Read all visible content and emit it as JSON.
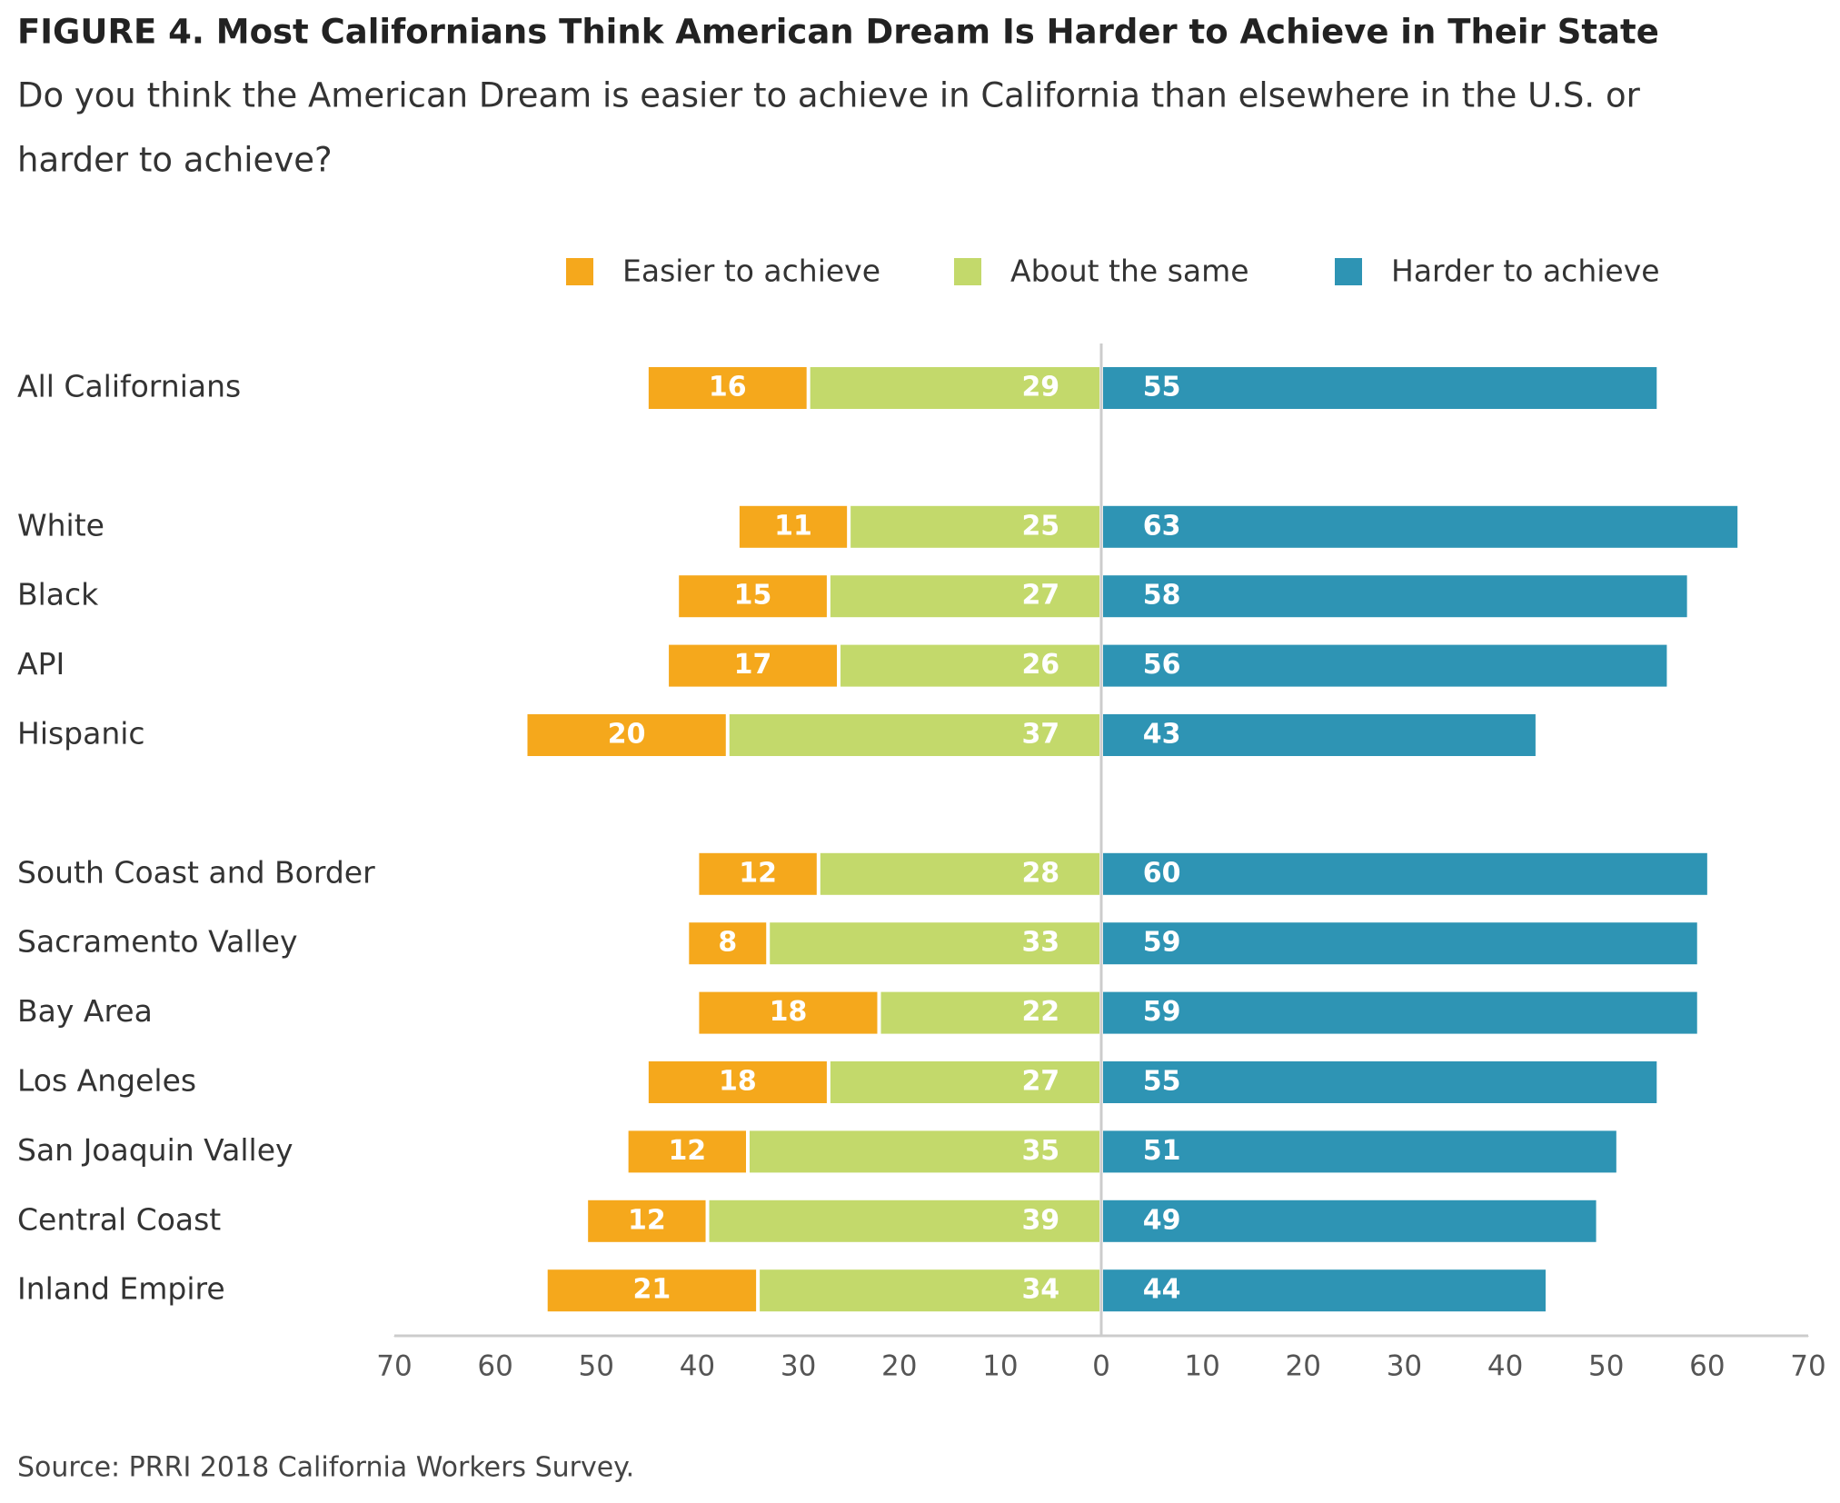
{
  "chart_data": {
    "type": "diverging-bar",
    "title": "FIGURE 4. Most Californians Think American Dream Is Harder to Achieve in Their State",
    "subtitle": [
      "Do you think the American Dream is easier to achieve in California than elsewhere in the U.S. or",
      "harder to achieve?"
    ],
    "source": "Source: PRRI 2018 California Workers Survey.",
    "categories": [
      "All Californians",
      null,
      "White",
      "Black",
      "API",
      "Hispanic",
      null,
      "South Coast and Border",
      "Sacramento Valley",
      "Bay Area",
      "Los Angeles",
      "San Joaquin Valley",
      "Central Coast",
      "Inland Empire"
    ],
    "series": [
      {
        "name": "Easier to achieve",
        "color": "#f5a81c",
        "side": "left",
        "values": [
          16,
          null,
          11,
          15,
          17,
          20,
          null,
          12,
          8,
          18,
          18,
          12,
          12,
          21
        ]
      },
      {
        "name": "About the same",
        "color": "#c3d96b",
        "side": "left",
        "values": [
          29,
          null,
          25,
          27,
          26,
          37,
          null,
          28,
          33,
          22,
          27,
          35,
          39,
          34
        ]
      },
      {
        "name": "Harder to achieve",
        "color": "#2e94b4",
        "side": "right",
        "values": [
          55,
          null,
          63,
          58,
          56,
          43,
          null,
          60,
          59,
          59,
          55,
          51,
          49,
          44
        ]
      }
    ],
    "xlim": [
      -70,
      70
    ],
    "xticks": [
      {
        "value": -70,
        "label": "70"
      },
      {
        "value": -60,
        "label": "60"
      },
      {
        "value": -50,
        "label": "50"
      },
      {
        "value": -40,
        "label": "40"
      },
      {
        "value": -30,
        "label": "30"
      },
      {
        "value": -20,
        "label": "20"
      },
      {
        "value": -10,
        "label": "10"
      },
      0,
      10,
      20,
      30,
      40,
      50,
      60,
      70
    ],
    "legend": "top"
  }
}
